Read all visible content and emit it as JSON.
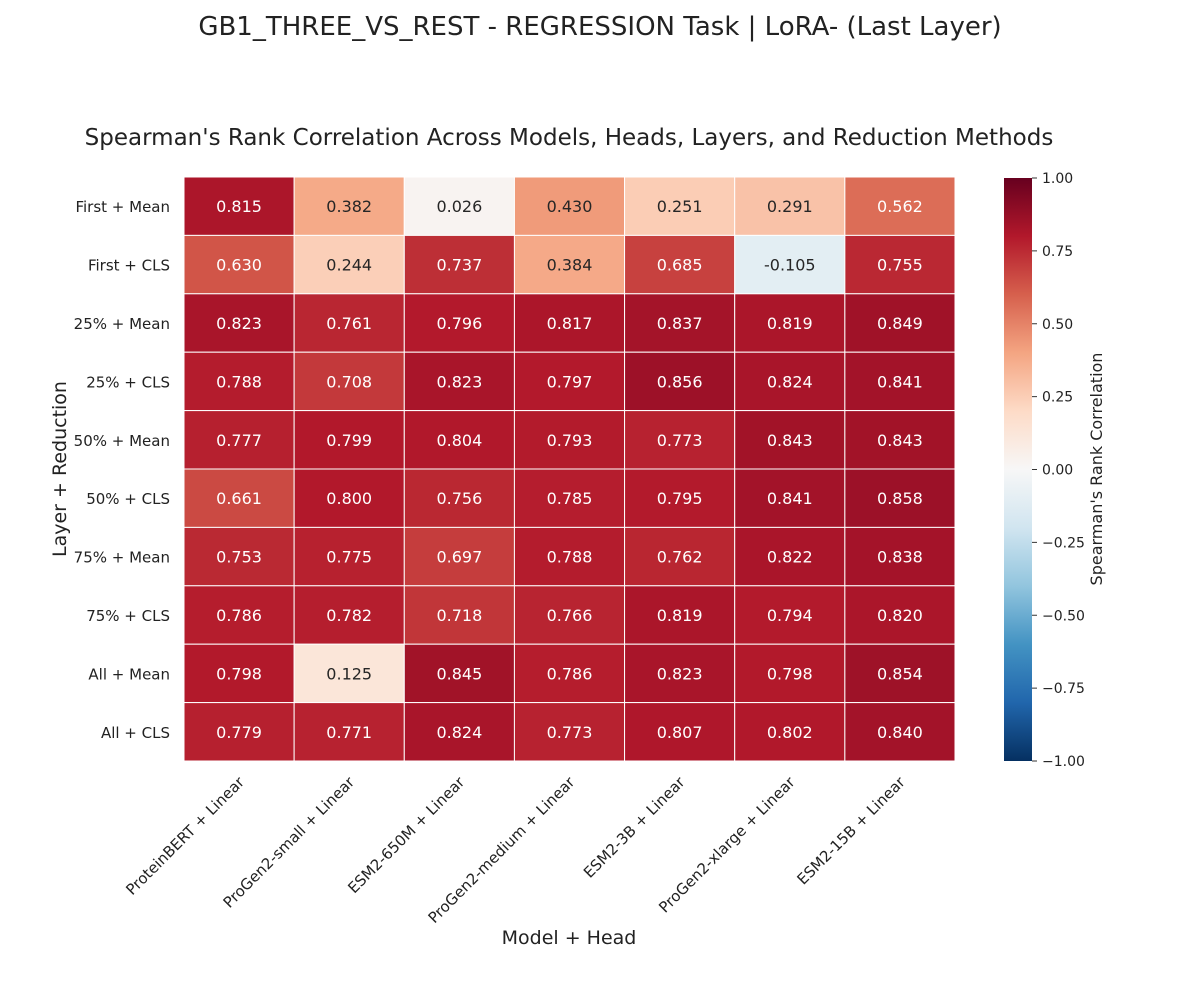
{
  "suptitle": "GB1_THREE_VS_REST - REGRESSION Task | LoRA- (Last Layer)",
  "chart_data": {
    "type": "heatmap",
    "title": "Spearman's Rank Correlation Across Models, Heads, Layers, and Reduction Methods",
    "xlabel": "Model + Head",
    "ylabel": "Layer + Reduction",
    "columns": [
      "ProteinBERT + Linear",
      "ProGen2-small + Linear",
      "ESM2-650M + Linear",
      "ProGen2-medium + Linear",
      "ESM2-3B + Linear",
      "ProGen2-xlarge + Linear",
      "ESM2-15B + Linear"
    ],
    "rows": [
      "First + Mean",
      "First + CLS",
      "25% + Mean",
      "25% + CLS",
      "50% + Mean",
      "50% + CLS",
      "75% + Mean",
      "75% + CLS",
      "All + Mean",
      "All + CLS"
    ],
    "values": [
      [
        0.815,
        0.382,
        0.026,
        0.43,
        0.251,
        0.291,
        0.562
      ],
      [
        0.63,
        0.244,
        0.737,
        0.384,
        0.685,
        -0.105,
        0.755
      ],
      [
        0.823,
        0.761,
        0.796,
        0.817,
        0.837,
        0.819,
        0.849
      ],
      [
        0.788,
        0.708,
        0.823,
        0.797,
        0.856,
        0.824,
        0.841
      ],
      [
        0.777,
        0.799,
        0.804,
        0.793,
        0.773,
        0.843,
        0.843
      ],
      [
        0.661,
        0.8,
        0.756,
        0.785,
        0.795,
        0.841,
        0.858
      ],
      [
        0.753,
        0.775,
        0.697,
        0.788,
        0.762,
        0.822,
        0.838
      ],
      [
        0.786,
        0.782,
        0.718,
        0.766,
        0.819,
        0.794,
        0.82
      ],
      [
        0.798,
        0.125,
        0.845,
        0.786,
        0.823,
        0.798,
        0.854
      ],
      [
        0.779,
        0.771,
        0.824,
        0.773,
        0.807,
        0.802,
        0.84
      ]
    ],
    "colorbar": {
      "label": "Spearman's Rank Correlation",
      "range": [
        -1.0,
        1.0
      ],
      "ticks": [
        1.0,
        0.75,
        0.5,
        0.25,
        0.0,
        -0.25,
        -0.5,
        -0.75,
        -1.0
      ],
      "tick_labels": [
        "1.00",
        "0.75",
        "0.50",
        "0.25",
        "0.00",
        "−0.25",
        "−0.50",
        "−0.75",
        "−1.00"
      ],
      "colormap": "RdBu_r",
      "colors": [
        "#053061",
        "#2166ac",
        "#4393c3",
        "#92c5de",
        "#d1e5f0",
        "#f7f7f7",
        "#fddbc7",
        "#f4a582",
        "#d6604d",
        "#b2182b",
        "#67001f"
      ]
    }
  }
}
